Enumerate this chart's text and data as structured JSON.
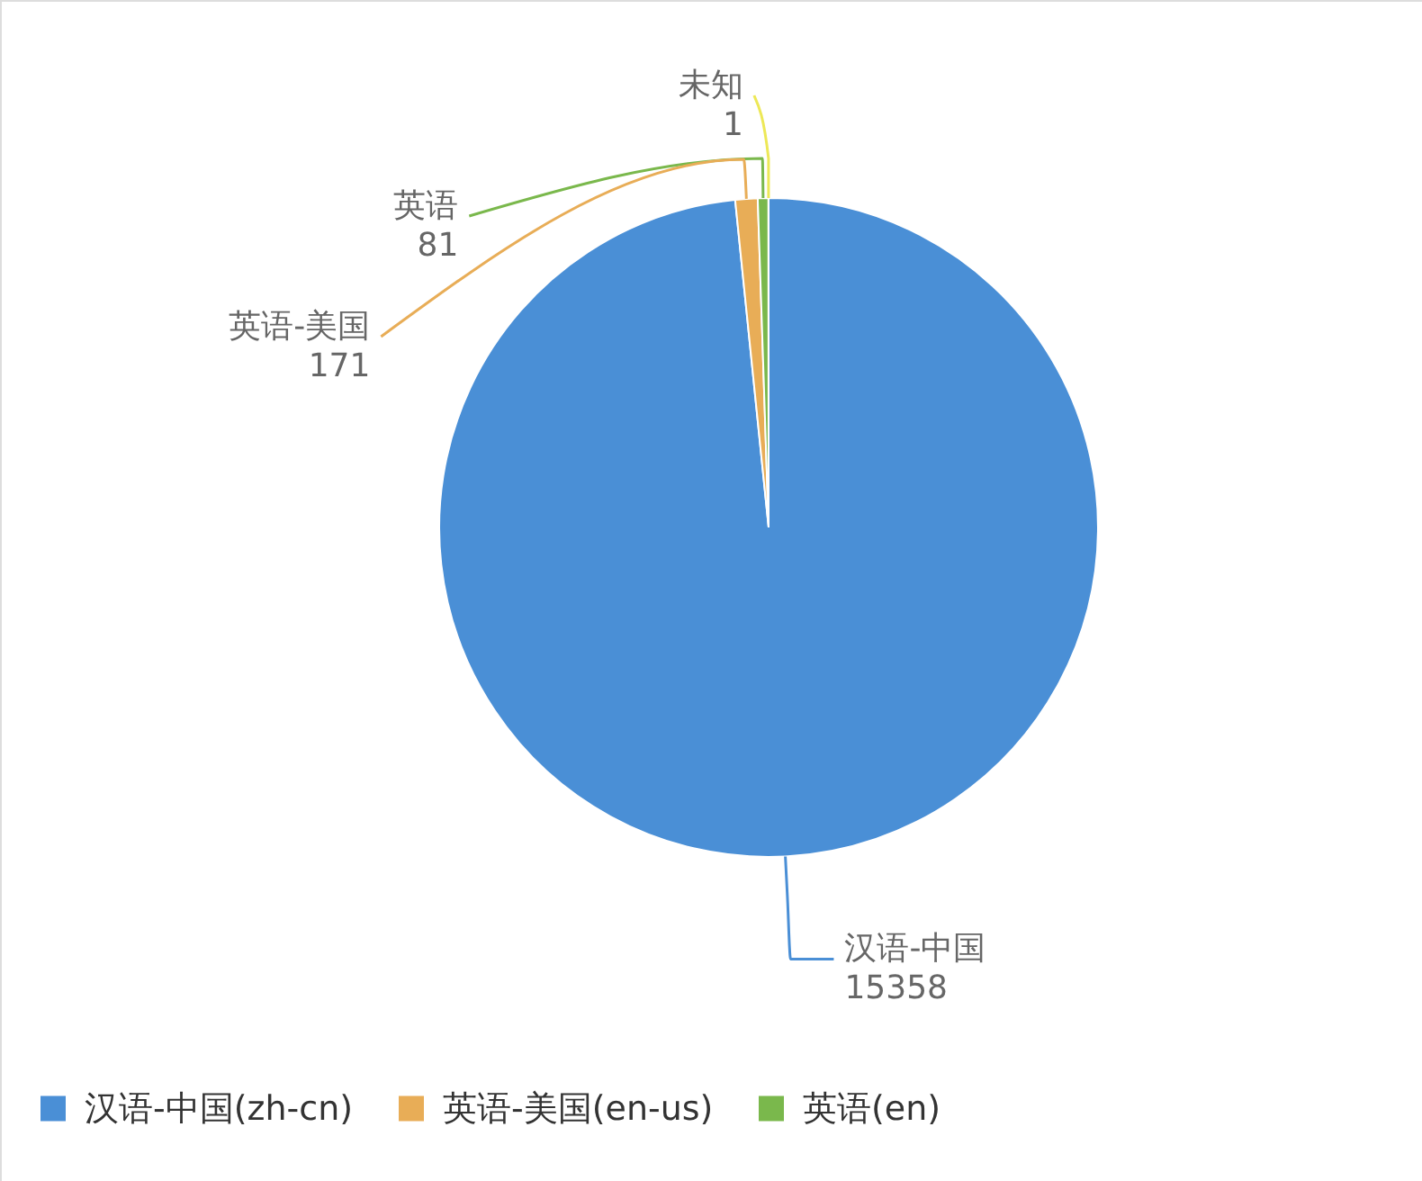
{
  "chart_data": {
    "type": "pie",
    "categories": [
      "汉语-中国(zh-cn)",
      "英语-美国(en-us)",
      "英语(en)",
      "未知"
    ],
    "values": [
      15358,
      171,
      81,
      1
    ],
    "colors": [
      "#4a8fd6",
      "#e8ad57",
      "#7ab84c",
      "#ede857"
    ],
    "data_labels": true,
    "legend": "bottom",
    "annotations": [
      {
        "text": "汉语-中国",
        "x": "汉语-中国(zh-cn)"
      },
      {
        "text": "英语-美国",
        "x": "英语-美国(en-us)"
      },
      {
        "text": "英语",
        "x": "英语(en)"
      }
    ]
  }
}
